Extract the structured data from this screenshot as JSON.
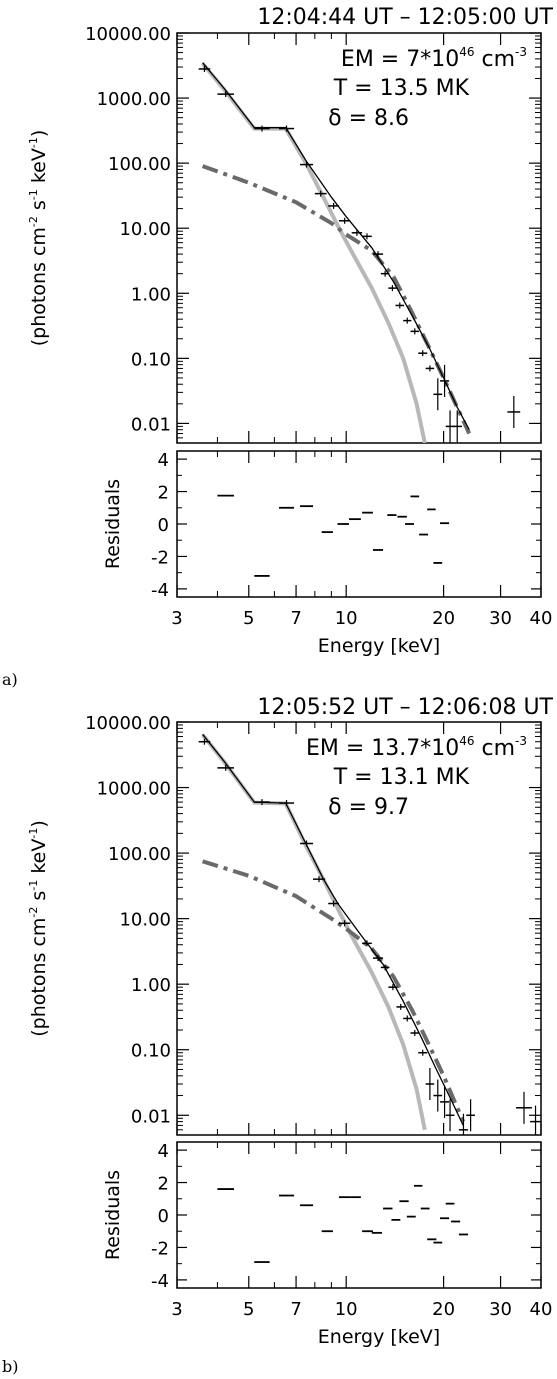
{
  "panels": [
    {
      "letter": "a)",
      "title": "12:04:44 UT – 12:05:00 UT",
      "params": {
        "em": "EM  =  7*10",
        "em_exp": "46",
        "em_unit": " cm",
        "em_unit_exp": "-3",
        "t": "T  =  13.5  MK",
        "delta": "δ  =  8.6"
      }
    },
    {
      "letter": "b)",
      "title": "12:05:52 UT – 12:06:08 UT",
      "params": {
        "em": "EM  =  13.7*10",
        "em_exp": "46",
        "em_unit": " cm",
        "em_unit_exp": "-3",
        "t": "T  =  13.1  MK",
        "delta": "δ  =  9.7"
      }
    }
  ],
  "axis_text": {
    "ylabel_main": "(photons cm",
    "ylabel_exp1": "-2",
    "ylabel_mid": " s",
    "ylabel_exp2": "-1",
    "ylabel_mid2": " keV",
    "ylabel_exp3": "-1",
    "ylabel_end": ")",
    "ylabel_resid": "Residuals",
    "xlabel": "Energy [keV]"
  },
  "chart_data": [
    {
      "type": "scatter",
      "panel": "a",
      "title": "12:04:44 UT – 12:05:00 UT",
      "xlabel": "Energy [keV]",
      "ylabel": "(photons cm-2 s-1 keV-1)",
      "xscale": "log",
      "yscale": "log",
      "xlim": [
        3,
        40
      ],
      "ylim": [
        0.005,
        10000
      ],
      "xticks": [
        3,
        5,
        7,
        10,
        20,
        30,
        40
      ],
      "yticks": [
        10000,
        1000,
        100,
        10,
        1,
        0.1,
        0.01
      ],
      "ytick_labels": [
        "10000.00",
        "1000.00",
        "100.00",
        "10.00",
        "1.00",
        "0.10",
        "0.01"
      ],
      "data_points": [
        {
          "x0": 3.5,
          "x1": 3.8,
          "y": 2800
        },
        {
          "x0": 4.0,
          "x1": 4.5,
          "y": 1150
        },
        {
          "x0": 5.2,
          "x1": 5.8,
          "y": 340
        },
        {
          "x0": 6.2,
          "x1": 6.9,
          "y": 340
        },
        {
          "x0": 7.2,
          "x1": 7.9,
          "y": 95
        },
        {
          "x0": 8.0,
          "x1": 8.7,
          "y": 34
        },
        {
          "x0": 8.8,
          "x1": 9.5,
          "y": 22
        },
        {
          "x0": 9.5,
          "x1": 10.3,
          "y": 13
        },
        {
          "x0": 10.4,
          "x1": 11.2,
          "y": 8.5
        },
        {
          "x0": 11.2,
          "x1": 12.0,
          "y": 7.5
        },
        {
          "x0": 12.1,
          "x1": 13.0,
          "y": 4
        },
        {
          "x0": 12.8,
          "x1": 13.6,
          "y": 2
        },
        {
          "x0": 13.5,
          "x1": 14.3,
          "y": 1.2
        },
        {
          "x0": 14.2,
          "x1": 15.1,
          "y": 0.65
        },
        {
          "x0": 15.0,
          "x1": 15.9,
          "y": 0.38
        },
        {
          "x0": 15.8,
          "x1": 16.8,
          "y": 0.26
        },
        {
          "x0": 16.7,
          "x1": 17.8,
          "y": 0.12
        },
        {
          "x0": 17.6,
          "x1": 18.7,
          "y": 0.07
        },
        {
          "x0": 18.6,
          "x1": 19.8,
          "y": 0.028
        },
        {
          "x0": 19.5,
          "x1": 20.8,
          "y": 0.045
        },
        {
          "x0": 20.3,
          "x1": 21.6,
          "y": 0.009
        },
        {
          "x0": 21.3,
          "x1": 22.8,
          "y": 0.009
        },
        {
          "x0": 31.5,
          "x1": 34.5,
          "y": 0.015
        }
      ],
      "fit_total": [
        [
          3.6,
          3500
        ],
        [
          4.2,
          1400
        ],
        [
          5.2,
          350
        ],
        [
          6.5,
          350
        ],
        [
          7.5,
          110
        ],
        [
          9,
          30
        ],
        [
          10,
          15
        ],
        [
          12,
          5
        ],
        [
          14,
          1.5
        ],
        [
          16,
          0.45
        ],
        [
          18,
          0.15
        ],
        [
          20,
          0.05
        ],
        [
          22,
          0.018
        ],
        [
          24,
          0.008
        ]
      ],
      "thermal": [
        [
          3.6,
          3400
        ],
        [
          4.2,
          1350
        ],
        [
          5.2,
          340
        ],
        [
          6.5,
          340
        ],
        [
          7.5,
          100
        ],
        [
          8.5,
          30
        ],
        [
          9.5,
          10
        ],
        [
          10.5,
          4
        ],
        [
          12,
          1.2
        ],
        [
          13.5,
          0.35
        ],
        [
          15,
          0.1
        ],
        [
          16.5,
          0.02
        ],
        [
          17.5,
          0.005
        ]
      ],
      "nonthermal": [
        [
          3.6,
          90
        ],
        [
          5,
          50
        ],
        [
          7,
          25
        ],
        [
          9,
          12
        ],
        [
          10,
          8
        ],
        [
          12,
          4.5
        ],
        [
          14,
          1.8
        ],
        [
          16,
          0.5
        ],
        [
          18,
          0.15
        ],
        [
          20,
          0.05
        ],
        [
          24,
          0.007
        ]
      ],
      "residuals": {
        "ylim": [
          -4.5,
          4.5
        ],
        "yticks": [
          4,
          2,
          0,
          -2,
          -4
        ],
        "points": [
          {
            "x0": 4.0,
            "x1": 4.5,
            "y": 1.75
          },
          {
            "x0": 5.2,
            "x1": 5.8,
            "y": -3.2
          },
          {
            "x0": 6.2,
            "x1": 6.9,
            "y": 1.0
          },
          {
            "x0": 7.2,
            "x1": 7.9,
            "y": 1.1
          },
          {
            "x0": 8.4,
            "x1": 9.1,
            "y": -0.5
          },
          {
            "x0": 9.4,
            "x1": 10.2,
            "y": 0.0
          },
          {
            "x0": 10.2,
            "x1": 11.1,
            "y": 0.3
          },
          {
            "x0": 11.2,
            "x1": 12.1,
            "y": 0.7
          },
          {
            "x0": 12.1,
            "x1": 13.0,
            "y": -1.6
          },
          {
            "x0": 13.4,
            "x1": 14.3,
            "y": 0.55
          },
          {
            "x0": 14.4,
            "x1": 15.4,
            "y": 0.45
          },
          {
            "x0": 15.2,
            "x1": 16.2,
            "y": 0.0
          },
          {
            "x0": 15.8,
            "x1": 16.8,
            "y": 1.7
          },
          {
            "x0": 16.8,
            "x1": 17.9,
            "y": -0.65
          },
          {
            "x0": 17.8,
            "x1": 18.9,
            "y": 0.9
          },
          {
            "x0": 18.6,
            "x1": 19.8,
            "y": -2.4
          },
          {
            "x0": 19.5,
            "x1": 20.8,
            "y": 0.05
          }
        ]
      }
    },
    {
      "type": "scatter",
      "panel": "b",
      "title": "12:05:52 UT – 12:06:08 UT",
      "xlabel": "Energy [keV]",
      "ylabel": "(photons cm-2 s-1 keV-1)",
      "xscale": "log",
      "yscale": "log",
      "xlim": [
        3,
        40
      ],
      "ylim": [
        0.005,
        10000
      ],
      "xticks": [
        3,
        5,
        7,
        10,
        20,
        30,
        40
      ],
      "yticks": [
        10000,
        1000,
        100,
        10,
        1,
        0.1,
        0.01
      ],
      "ytick_labels": [
        "10000.00",
        "1000.00",
        "100.00",
        "10.00",
        "1.00",
        "0.10",
        "0.01"
      ],
      "data_points": [
        {
          "x0": 3.5,
          "x1": 3.8,
          "y": 5000
        },
        {
          "x0": 4.0,
          "x1": 4.5,
          "y": 2000
        },
        {
          "x0": 5.2,
          "x1": 5.8,
          "y": 600
        },
        {
          "x0": 6.2,
          "x1": 6.9,
          "y": 580
        },
        {
          "x0": 7.2,
          "x1": 7.9,
          "y": 140
        },
        {
          "x0": 7.9,
          "x1": 8.6,
          "y": 40
        },
        {
          "x0": 8.8,
          "x1": 9.5,
          "y": 17
        },
        {
          "x0": 9.5,
          "x1": 10.3,
          "y": 8.5
        },
        {
          "x0": 11.2,
          "x1": 12.0,
          "y": 4.2
        },
        {
          "x0": 12.1,
          "x1": 13.0,
          "y": 2.5
        },
        {
          "x0": 12.8,
          "x1": 13.6,
          "y": 1.8
        },
        {
          "x0": 13.5,
          "x1": 14.4,
          "y": 0.9
        },
        {
          "x0": 14.3,
          "x1": 15.2,
          "y": 0.45
        },
        {
          "x0": 15.0,
          "x1": 15.9,
          "y": 0.3
        },
        {
          "x0": 15.8,
          "x1": 16.8,
          "y": 0.18
        },
        {
          "x0": 16.7,
          "x1": 17.8,
          "y": 0.09
        },
        {
          "x0": 17.6,
          "x1": 18.7,
          "y": 0.03
        },
        {
          "x0": 18.6,
          "x1": 19.8,
          "y": 0.02
        },
        {
          "x0": 19.5,
          "x1": 20.8,
          "y": 0.016
        },
        {
          "x0": 20.3,
          "x1": 21.6,
          "y": 0.01
        },
        {
          "x0": 22.3,
          "x1": 23.8,
          "y": 0.006
        },
        {
          "x0": 23.5,
          "x1": 25.0,
          "y": 0.01
        },
        {
          "x0": 33.5,
          "x1": 37.5,
          "y": 0.013
        },
        {
          "x0": 37.0,
          "x1": 40.0,
          "y": 0.008
        }
      ],
      "fit_total": [
        [
          3.6,
          6500
        ],
        [
          4.2,
          2500
        ],
        [
          5.2,
          600
        ],
        [
          6.5,
          580
        ],
        [
          7.5,
          140
        ],
        [
          8.5,
          40
        ],
        [
          9.5,
          16
        ],
        [
          11,
          6
        ],
        [
          13,
          2
        ],
        [
          15,
          0.55
        ],
        [
          17,
          0.16
        ],
        [
          19,
          0.05
        ],
        [
          21,
          0.018
        ],
        [
          23,
          0.007
        ]
      ],
      "thermal": [
        [
          3.6,
          6400
        ],
        [
          4.2,
          2450
        ],
        [
          5.2,
          590
        ],
        [
          6.5,
          570
        ],
        [
          7.5,
          130
        ],
        [
          8.5,
          40
        ],
        [
          9.5,
          13
        ],
        [
          10.5,
          5
        ],
        [
          12,
          1.5
        ],
        [
          13.5,
          0.45
        ],
        [
          15,
          0.12
        ],
        [
          16.5,
          0.025
        ],
        [
          17.5,
          0.006
        ]
      ],
      "nonthermal": [
        [
          3.6,
          75
        ],
        [
          5,
          45
        ],
        [
          7,
          22
        ],
        [
          9,
          10
        ],
        [
          10,
          7
        ],
        [
          12,
          3.5
        ],
        [
          14,
          1.3
        ],
        [
          16,
          0.4
        ],
        [
          18,
          0.12
        ],
        [
          20,
          0.04
        ],
        [
          23,
          0.008
        ]
      ],
      "residuals": {
        "ylim": [
          -4.5,
          4.5
        ],
        "yticks": [
          4,
          2,
          0,
          -2,
          -4
        ],
        "points": [
          {
            "x0": 4.0,
            "x1": 4.5,
            "y": 1.6
          },
          {
            "x0": 5.2,
            "x1": 5.8,
            "y": -2.9
          },
          {
            "x0": 6.2,
            "x1": 6.9,
            "y": 1.2
          },
          {
            "x0": 7.2,
            "x1": 7.9,
            "y": 0.6
          },
          {
            "x0": 8.4,
            "x1": 9.1,
            "y": -1.0
          },
          {
            "x0": 9.5,
            "x1": 10.3,
            "y": 1.1
          },
          {
            "x0": 10.3,
            "x1": 11.1,
            "y": 1.1
          },
          {
            "x0": 11.2,
            "x1": 12.1,
            "y": -1.0
          },
          {
            "x0": 12.0,
            "x1": 12.9,
            "y": -1.1
          },
          {
            "x0": 13.0,
            "x1": 13.9,
            "y": 0.4
          },
          {
            "x0": 13.8,
            "x1": 14.7,
            "y": -0.3
          },
          {
            "x0": 14.6,
            "x1": 15.6,
            "y": 0.85
          },
          {
            "x0": 15.4,
            "x1": 16.4,
            "y": -0.1
          },
          {
            "x0": 16.2,
            "x1": 17.2,
            "y": 1.8
          },
          {
            "x0": 17.0,
            "x1": 18.1,
            "y": 0.4
          },
          {
            "x0": 17.8,
            "x1": 19.0,
            "y": -1.5
          },
          {
            "x0": 18.6,
            "x1": 19.8,
            "y": -1.7
          },
          {
            "x0": 19.5,
            "x1": 20.8,
            "y": -0.2
          },
          {
            "x0": 20.3,
            "x1": 21.6,
            "y": 0.7
          },
          {
            "x0": 21.1,
            "x1": 22.5,
            "y": -0.4
          },
          {
            "x0": 22.3,
            "x1": 23.8,
            "y": -1.2
          }
        ]
      }
    }
  ]
}
